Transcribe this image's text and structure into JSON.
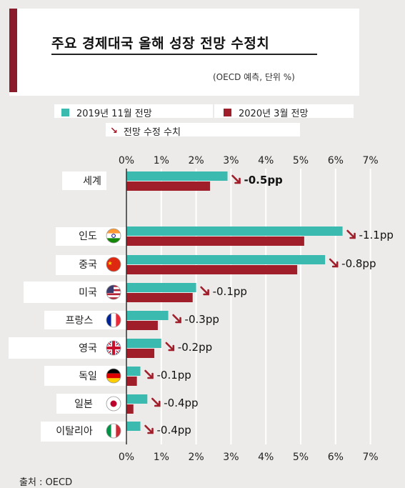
{
  "header": {
    "title": "주요 경제대국 올해 성장 전망 수정치",
    "subtitle": "(OECD 예측, 단위 %)"
  },
  "legend": {
    "nov2019": "2019년 11월 전망",
    "mar2020": "2020년 3월 전망",
    "revision": "전망 수정 수치"
  },
  "colors": {
    "nov2019": "#3bbab0",
    "mar2020": "#a01d2a",
    "arrow": "#a01d2a"
  },
  "source": "출처 : OECD",
  "chart_data": {
    "type": "bar",
    "orientation": "horizontal",
    "xlim": [
      0,
      7
    ],
    "x_ticks": [
      "0%",
      "1%",
      "2%",
      "3%",
      "4%",
      "5%",
      "6%",
      "7%"
    ],
    "grid": true,
    "categories": [
      "세계",
      "인도",
      "중국",
      "미국",
      "프랑스",
      "영국",
      "독일",
      "일본",
      "이탈리아"
    ],
    "flags": [
      "",
      "india",
      "china",
      "usa",
      "france",
      "uk",
      "germany",
      "japan",
      "italy"
    ],
    "series": [
      {
        "name": "2019년 11월 전망",
        "values": [
          2.9,
          6.2,
          5.7,
          2.0,
          1.2,
          1.0,
          0.4,
          0.6,
          0.4
        ]
      },
      {
        "name": "2020년 3월 전망",
        "values": [
          2.4,
          5.1,
          4.9,
          1.9,
          0.9,
          0.8,
          0.3,
          0.2,
          0.0
        ]
      }
    ],
    "revisions": [
      "-0.5pp",
      "-1.1pp",
      "-0.8pp",
      "-0.1pp",
      "-0.3pp",
      "-0.2pp",
      "-0.1pp",
      "-0.4pp",
      "-0.4pp"
    ]
  }
}
